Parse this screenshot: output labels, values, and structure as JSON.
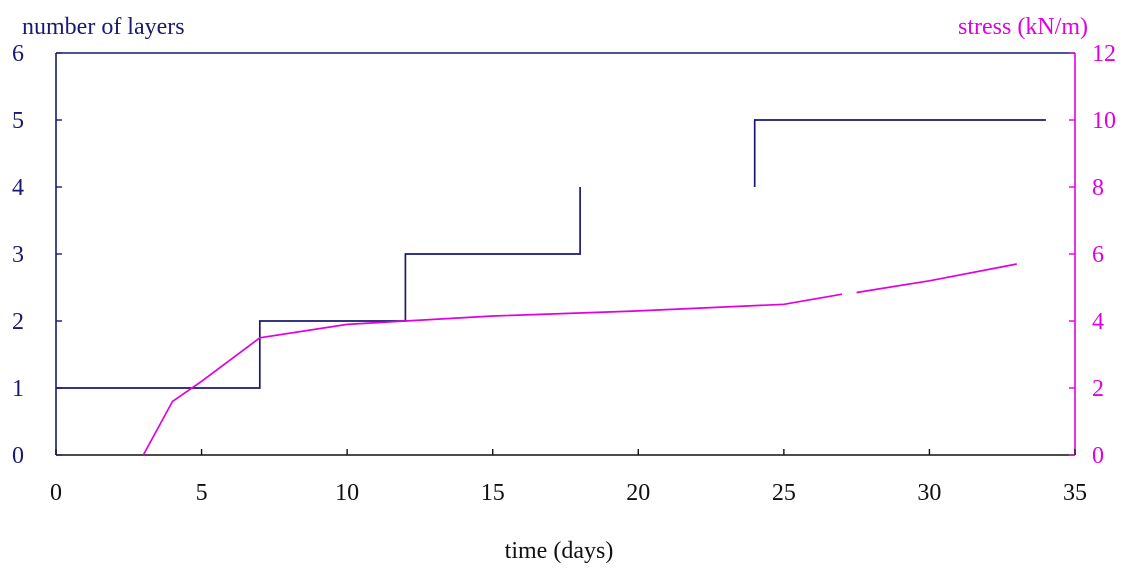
{
  "chart_data": {
    "type": "line",
    "xlabel": "time (days)",
    "ylabel_left": "number of layers",
    "ylabel_right": "stress (kN/m)",
    "xlim": [
      0,
      35
    ],
    "ylim_left": [
      0,
      6
    ],
    "ylim_right": [
      0,
      12
    ],
    "x_ticks": [
      0,
      5,
      10,
      15,
      20,
      25,
      30,
      35
    ],
    "y_left_ticks": [
      0,
      1,
      2,
      3,
      4,
      5,
      6
    ],
    "y_right_ticks": [
      0,
      2,
      4,
      6,
      8,
      10,
      12
    ],
    "grid": false,
    "legend": "none",
    "colors": {
      "layers": "#1a1a6e",
      "stress": "#e000e0",
      "axis": "#111111"
    },
    "series": [
      {
        "axis": "left",
        "segments": [
          [
            [
              0,
              1
            ],
            [
              7,
              1
            ],
            [
              7,
              2
            ],
            [
              12,
              2
            ],
            [
              12,
              3
            ],
            [
              18,
              3
            ],
            [
              18,
              4
            ]
          ],
          [
            [
              24,
              4
            ],
            [
              24,
              5
            ],
            [
              34,
              5
            ]
          ]
        ]
      },
      {
        "axis": "right",
        "segments": [
          [
            [
              3,
              0
            ],
            [
              4,
              1.6
            ],
            [
              5,
              2.2
            ],
            [
              7,
              3.5
            ],
            [
              10,
              3.9
            ],
            [
              12,
              4.0
            ],
            [
              15,
              4.15
            ],
            [
              20,
              4.3
            ],
            [
              25,
              4.5
            ],
            [
              27,
              4.8
            ]
          ],
          [
            [
              27.5,
              4.85
            ],
            [
              30,
              5.2
            ],
            [
              33,
              5.7
            ]
          ]
        ]
      }
    ]
  }
}
